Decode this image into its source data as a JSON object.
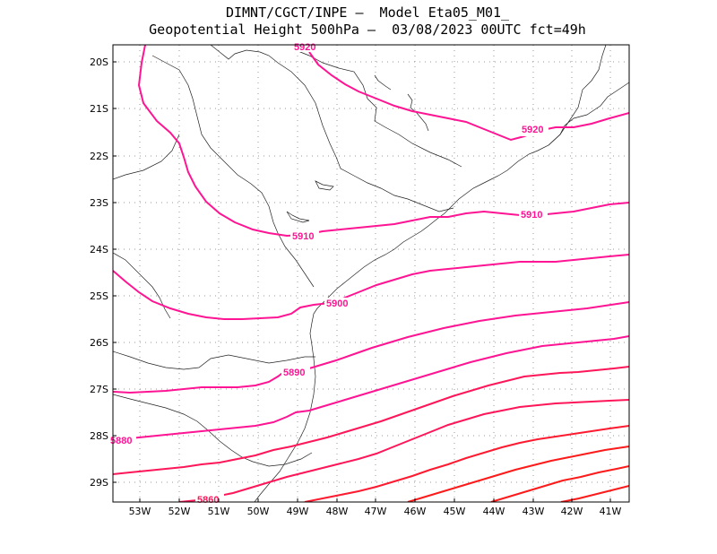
{
  "title": {
    "line1": "DIMNT/CGCT/INPE –  Model Eta05_M01_",
    "line2": "Geopotential Height 500hPa –  03/08/2023 00UTC fct=49h"
  },
  "axes": {
    "lat_labels": [
      "20S",
      "21S",
      "22S",
      "23S",
      "24S",
      "25S",
      "26S",
      "27S",
      "28S",
      "29S"
    ],
    "lon_labels": [
      "53W",
      "52W",
      "51W",
      "50W",
      "49W",
      "48W",
      "47W",
      "46W",
      "45W",
      "44W",
      "43W",
      "42W",
      "41W"
    ]
  },
  "contour_labels": [
    "5920",
    "5920",
    "5910",
    "5910",
    "5900",
    "5890",
    "5880",
    "5860"
  ],
  "colors": {
    "contour_magenta": "#ff1493",
    "contour_red": "#ff1a1a",
    "coastline": "#000000",
    "grid": "#9a9a9a"
  }
}
